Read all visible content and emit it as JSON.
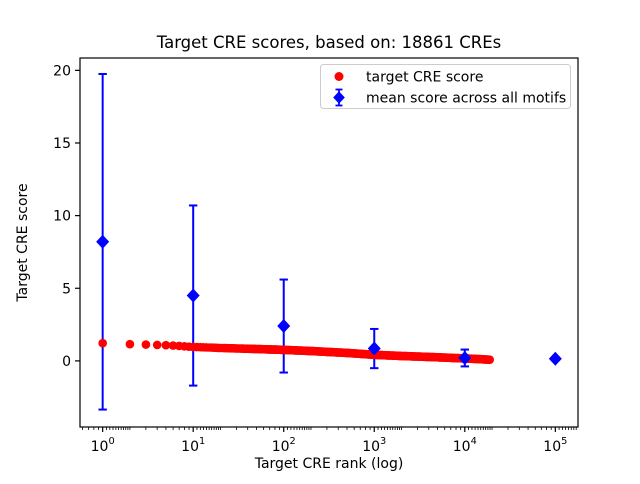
{
  "title": "Target CRE scores, based on: 18861 CREs",
  "xlabel": "Target CRE rank (log)",
  "ylabel": "Target CRE score",
  "legend": {
    "items": [
      {
        "label": "target CRE score",
        "marker": "circle",
        "color": "#ff0000"
      },
      {
        "label": "mean score across all motifs",
        "marker": "diamond-errorbar",
        "color": "#0000ff"
      }
    ],
    "border_color": "#cccccc",
    "background": "#ffffff",
    "position": "upper right"
  },
  "colors": {
    "target_series": "#ff0000",
    "mean_series": "#0000ff",
    "axis": "#000000",
    "background": "#ffffff"
  },
  "chart_data": {
    "type": "scatter",
    "title": "Target CRE scores, based on: 18861 CREs",
    "xlabel": "Target CRE rank (log)",
    "ylabel": "Target CRE score",
    "x_scale": "log",
    "y_scale": "linear",
    "xlim": [
      0.562,
      178000
    ],
    "ylim": [
      -4.55,
      20.85
    ],
    "x_tick_exponents": [
      0,
      1,
      2,
      3,
      4,
      5
    ],
    "x_tick_base": "10",
    "y_ticks": [
      0,
      5,
      10,
      15,
      20
    ],
    "grid": false,
    "n_cres": 18861,
    "series": [
      {
        "name": "target CRE score",
        "type": "scatter",
        "color": "#ff0000",
        "n_points": 18861,
        "control_points": {
          "rank": [
            1,
            2,
            3,
            4,
            5,
            7,
            10,
            20,
            50,
            100,
            200,
            500,
            1000,
            2000,
            5000,
            10000,
            15000,
            18861
          ],
          "score": [
            1.22,
            1.15,
            1.12,
            1.1,
            1.08,
            1.03,
            0.96,
            0.89,
            0.82,
            0.76,
            0.68,
            0.55,
            0.42,
            0.34,
            0.25,
            0.17,
            0.12,
            0.08
          ]
        }
      },
      {
        "name": "mean score across all motifs",
        "type": "errorbar",
        "color": "#0000ff",
        "x": [
          1,
          10,
          100,
          1000,
          10000,
          100000
        ],
        "y": [
          8.2,
          4.5,
          2.4,
          0.85,
          0.2,
          0.15
        ],
        "yerr": [
          11.55,
          6.2,
          3.2,
          1.35,
          0.58,
          0
        ]
      }
    ]
  }
}
